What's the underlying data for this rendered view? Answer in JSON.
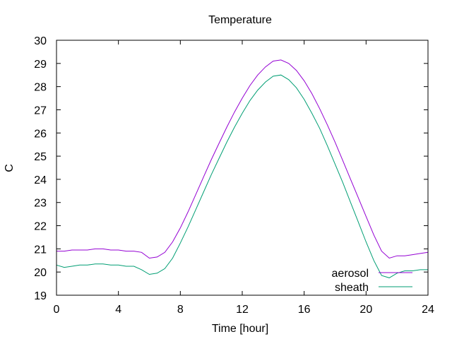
{
  "chart_data": {
    "type": "line",
    "title": "Temperature",
    "xlabel": "Time [hour]",
    "ylabel": "C",
    "xlim": [
      0,
      24
    ],
    "ylim": [
      19,
      30
    ],
    "xticks": [
      0,
      4,
      8,
      12,
      16,
      20,
      24
    ],
    "yticks": [
      19,
      20,
      21,
      22,
      23,
      24,
      25,
      26,
      27,
      28,
      29,
      30
    ],
    "grid": false,
    "legend_position": "bottom-right",
    "x": [
      0,
      0.5,
      1,
      1.5,
      2,
      2.5,
      3,
      3.5,
      4,
      4.5,
      5,
      5.5,
      6,
      6.5,
      7,
      7.5,
      8,
      8.5,
      9,
      9.5,
      10,
      10.5,
      11,
      11.5,
      12,
      12.5,
      13,
      13.5,
      14,
      14.5,
      15,
      15.5,
      16,
      16.5,
      17,
      17.5,
      18,
      18.5,
      19,
      19.5,
      20,
      20.5,
      21,
      21.5,
      22,
      22.5,
      23,
      23.5,
      24
    ],
    "series": [
      {
        "name": "aerosol",
        "color": "#9400d3",
        "values": [
          20.9,
          20.9,
          20.95,
          20.95,
          20.95,
          21.0,
          21.0,
          20.95,
          20.95,
          20.9,
          20.9,
          20.85,
          20.6,
          20.65,
          20.85,
          21.3,
          21.9,
          22.6,
          23.35,
          24.1,
          24.85,
          25.55,
          26.25,
          26.9,
          27.5,
          28.05,
          28.5,
          28.85,
          29.1,
          29.15,
          29.0,
          28.7,
          28.25,
          27.7,
          27.05,
          26.35,
          25.6,
          24.8,
          24.0,
          23.2,
          22.4,
          21.6,
          20.9,
          20.6,
          20.7,
          20.7,
          20.75,
          20.8,
          20.85
        ]
      },
      {
        "name": "sheath",
        "color": "#009e73",
        "values": [
          20.3,
          20.2,
          20.25,
          20.3,
          20.3,
          20.35,
          20.35,
          20.3,
          20.3,
          20.25,
          20.25,
          20.1,
          19.9,
          19.95,
          20.15,
          20.6,
          21.25,
          21.95,
          22.7,
          23.45,
          24.2,
          24.9,
          25.6,
          26.25,
          26.85,
          27.4,
          27.85,
          28.2,
          28.45,
          28.5,
          28.3,
          27.95,
          27.45,
          26.85,
          26.2,
          25.45,
          24.65,
          23.85,
          23.0,
          22.15,
          21.3,
          20.5,
          19.85,
          19.75,
          19.95,
          20.05,
          20.05,
          20.1,
          20.1
        ]
      }
    ]
  }
}
